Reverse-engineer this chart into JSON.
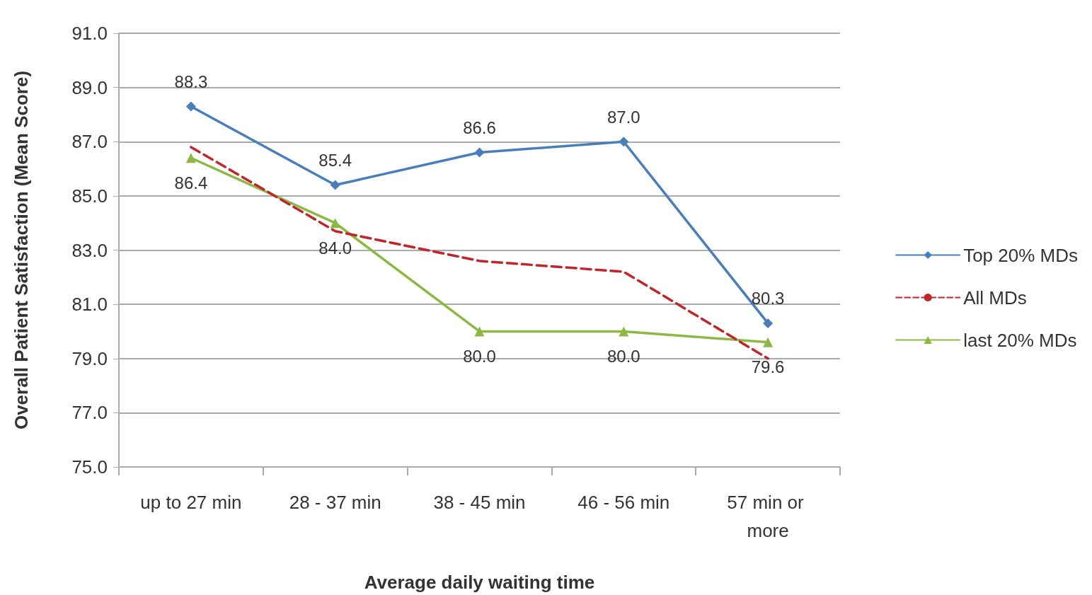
{
  "chart_data": {
    "type": "line",
    "xlabel": "Average daily waiting time",
    "ylabel": "Overall Patient Satisfaction (Mean Score)",
    "categories": [
      "up to 27 min",
      "28 - 37 min",
      "38 - 45 min",
      "46 - 56 min",
      "57 min or more"
    ],
    "series": [
      {
        "name": "Top 20% MDs",
        "color": "#4a7ebb",
        "marker": "diamond",
        "line_style": "solid",
        "values": [
          88.3,
          85.4,
          86.6,
          87.0,
          80.3
        ],
        "value_labels": [
          "88.3",
          "85.4",
          "86.6",
          "87.0",
          "80.3"
        ]
      },
      {
        "name": "All MDs",
        "color": "#c0252a",
        "marker": "none",
        "line_style": "dashed",
        "values": [
          86.8,
          83.7,
          82.6,
          82.2,
          79.0
        ]
      },
      {
        "name": "last 20% MDs",
        "color": "#8cb944",
        "marker": "triangle",
        "line_style": "solid",
        "values": [
          86.4,
          84.0,
          80.0,
          80.0,
          79.6
        ],
        "value_labels": [
          "86.4",
          "84.0",
          "80.0",
          "80.0",
          "79.6"
        ]
      }
    ],
    "ylim": [
      75,
      91
    ],
    "yticks": [
      {
        "value": 75,
        "label": "75.0"
      },
      {
        "value": 77,
        "label": "77.0"
      },
      {
        "value": 79,
        "label": "79.0"
      },
      {
        "value": 81,
        "label": "81.0"
      },
      {
        "value": 83,
        "label": "83.0"
      },
      {
        "value": 85,
        "label": "85.0"
      },
      {
        "value": 87,
        "label": "87.0"
      },
      {
        "value": 89,
        "label": "89.0"
      },
      {
        "value": 91,
        "label": "91.0"
      }
    ],
    "grid": "y",
    "legend": "right"
  }
}
